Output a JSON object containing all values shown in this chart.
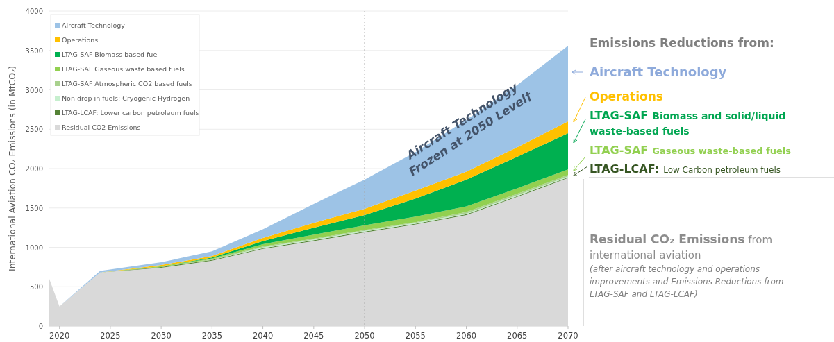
{
  "chart_data": {
    "type": "area",
    "stacked": true,
    "xlabel": null,
    "ylabel": "International Aviation CO₂ Emissions (in MtCO₂)",
    "x": [
      2019,
      2020,
      2024,
      2030,
      2035,
      2040,
      2045,
      2050,
      2055,
      2060,
      2065,
      2070
    ],
    "series": [
      {
        "name": "Residual CO2 Emissions",
        "color": "#d9d9d9",
        "values": [
          600,
          250,
          680,
          740,
          830,
          980,
          1080,
          1190,
          1290,
          1410,
          1640,
          1880
        ]
      },
      {
        "name": "LTAG-LCAF: Lower carbon petroleum fuels",
        "color": "#548235",
        "values": [
          0,
          0,
          0,
          10,
          10,
          10,
          10,
          10,
          10,
          10,
          10,
          10
        ]
      },
      {
        "name": "Non drop in fuels: Cryogenic Hydrogen",
        "color": "#c6efce",
        "values": [
          0,
          0,
          0,
          0,
          0,
          10,
          10,
          10,
          10,
          10,
          10,
          10
        ]
      },
      {
        "name": "LTAG-SAF Atmospheric CO2 based fuels",
        "color": "#a9d18e",
        "values": [
          0,
          0,
          0,
          0,
          10,
          10,
          10,
          10,
          10,
          20,
          20,
          20
        ]
      },
      {
        "name": "LTAG-SAF Gaseous waste based fuels",
        "color": "#92d050",
        "values": [
          0,
          0,
          0,
          10,
          10,
          30,
          50,
          60,
          70,
          70,
          70,
          70
        ]
      },
      {
        "name": "LTAG-SAF Biomass based fuel",
        "color": "#00b050",
        "values": [
          0,
          0,
          0,
          0,
          10,
          40,
          90,
          130,
          230,
          340,
          400,
          460
        ]
      },
      {
        "name": "Operations",
        "color": "#ffc000",
        "values": [
          0,
          0,
          0,
          15,
          20,
          40,
          60,
          80,
          100,
          100,
          120,
          150
        ]
      },
      {
        "name": "Aircraft Technology",
        "color": "#9dc3e6",
        "values": [
          0,
          0,
          20,
          35,
          60,
          110,
          240,
          370,
          490,
          660,
          790,
          960
        ]
      }
    ],
    "xlim": [
      2019,
      2070
    ],
    "xticks": [
      2020,
      2025,
      2030,
      2035,
      2040,
      2045,
      2050,
      2055,
      2060,
      2065,
      2070
    ],
    "ylim": [
      0,
      4000
    ],
    "yticks": [
      0,
      500,
      1000,
      1500,
      2000,
      2500,
      3000,
      3500,
      4000
    ],
    "grid": "y",
    "legend": "top left",
    "ref_lines": [
      {
        "axis": "x",
        "value": 2050,
        "color": "#a6a6a6",
        "line_style": "dotted"
      }
    ],
    "annotations": [
      "Emissions Reductions from:",
      "Aircraft Technology",
      "Operations",
      "LTAG-SAF Biomass and solid/liquid waste-based fuels",
      "LTAG-SAF Gaseous waste-based fuels",
      "LTAG-LCAF: Low Carbon petroleum fuels",
      "Residual CO₂ Emissions from international aviation",
      "(after aircraft technology and operations improvements and Emissions Reductions from LTAG-SAF and LTAG-LCAF)",
      "Aircraft Technology Frozen at 2050 Level†"
    ]
  }
}
